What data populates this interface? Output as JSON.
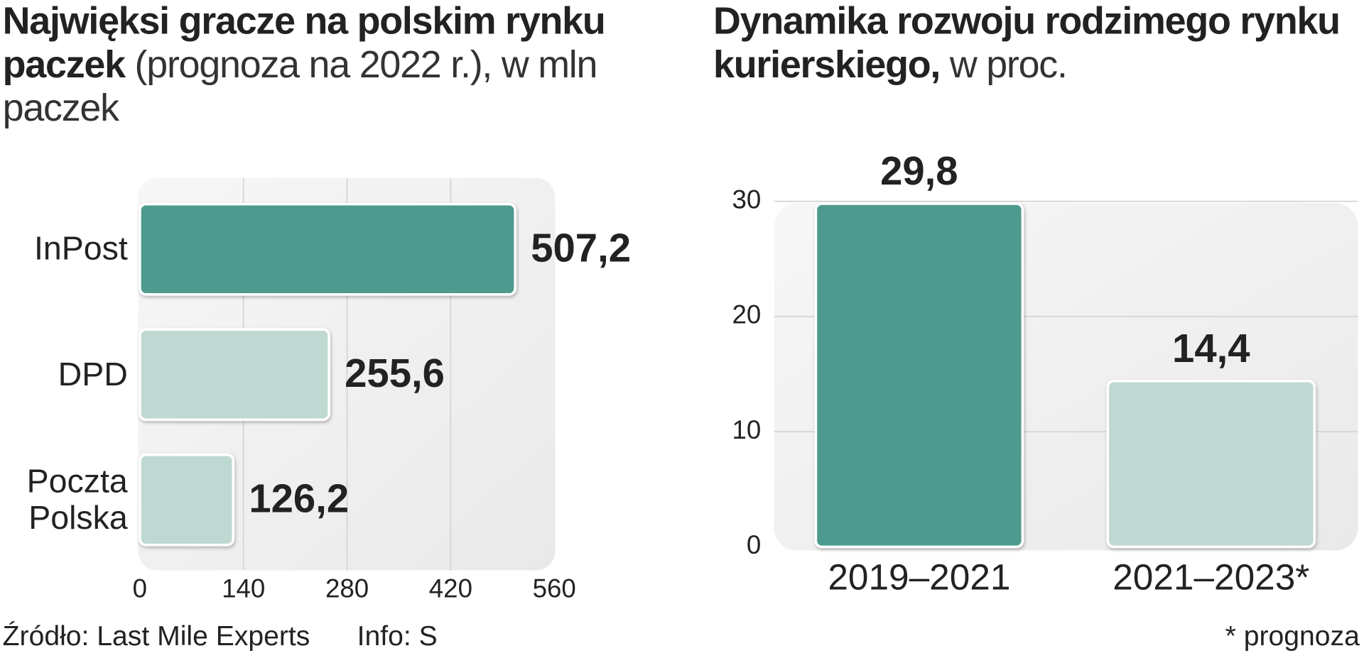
{
  "chart_data": [
    {
      "type": "hbar",
      "title": "Najwięksi gracze na polskim rynku paczek",
      "title_note": "(prognoza na 2022 r.), w mln paczek",
      "categories": [
        "InPost",
        "DPD",
        "Poczta Polska"
      ],
      "values": [
        507.2,
        255.6,
        126.2
      ],
      "value_labels": [
        "507,2",
        "255,6",
        "126,2"
      ],
      "colors": [
        "#4f9a8f",
        "#bfd9d2",
        "#bfd9d2"
      ],
      "xlim": [
        0,
        560
      ],
      "xticks": [
        0,
        140,
        280,
        420,
        560
      ],
      "grid": true,
      "source": "Źródło: Last Mile Experts",
      "credit": "Info: S"
    },
    {
      "type": "bar",
      "title": "Dynamika rozwoju rodzimego rynku kurierskiego,",
      "title_note": "w proc.",
      "categories": [
        "2019–2021",
        "2021–2023*"
      ],
      "values": [
        29.8,
        14.4
      ],
      "value_labels": [
        "29,8",
        "14,4"
      ],
      "colors": [
        "#4f9a8f",
        "#bfd9d2"
      ],
      "ylim": [
        0,
        30
      ],
      "yticks": [
        0,
        10,
        20,
        30
      ],
      "grid": true,
      "footnote": "* prognoza"
    }
  ]
}
